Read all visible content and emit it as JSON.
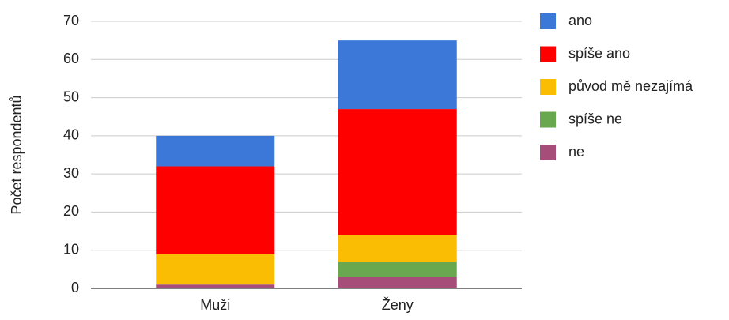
{
  "chart_data": {
    "type": "stacked_bar",
    "y_axis_label": "Počet respondentů",
    "categories": [
      "Muži",
      "Ženy"
    ],
    "series": [
      {
        "name": "ano",
        "color": "#3c78d8",
        "values": [
          8,
          18
        ]
      },
      {
        "name": "spíše ano",
        "color": "#ff0000",
        "values": [
          23,
          33
        ]
      },
      {
        "name": "původ mě nezajímá",
        "color": "#fbbc04",
        "values": [
          8,
          7
        ]
      },
      {
        "name": "spíše ne",
        "color": "#6aa84f",
        "values": [
          0,
          4
        ]
      },
      {
        "name": "ne",
        "color": "#a64d79",
        "values": [
          1,
          3
        ]
      }
    ],
    "ylim": [
      0,
      70
    ],
    "yticks": [
      0,
      10,
      20,
      30,
      40,
      50,
      60,
      70
    ],
    "grid": true,
    "legend": "right"
  }
}
